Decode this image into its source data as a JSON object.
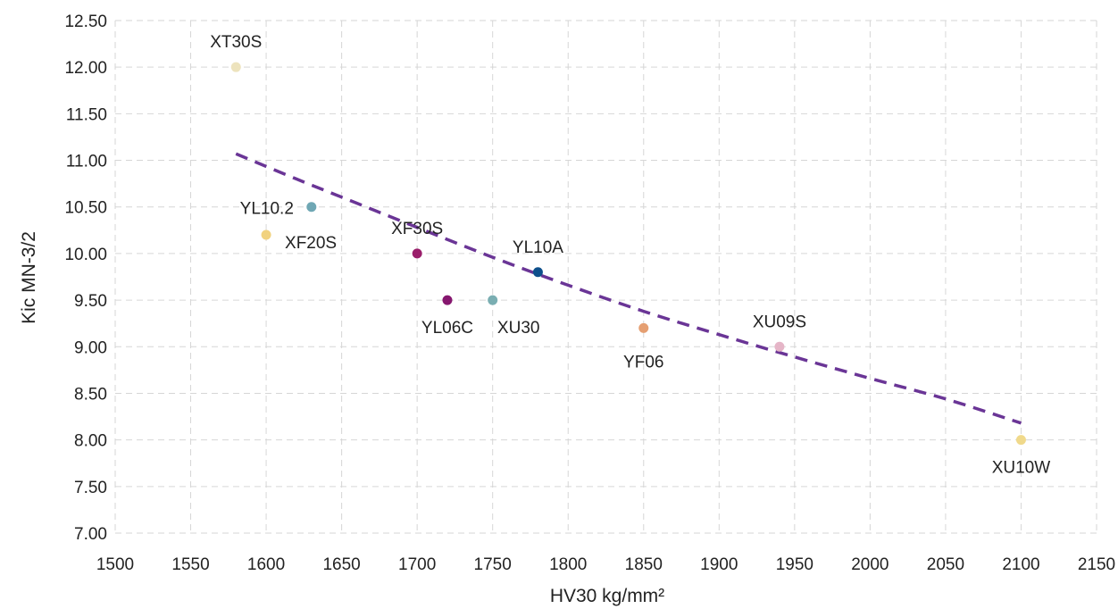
{
  "chart_data": {
    "type": "scatter",
    "title": "",
    "xlabel": "HV30 kg/mm²",
    "ylabel": "Kic MN-3/2",
    "xlim": [
      1500,
      2150
    ],
    "ylim": [
      7.0,
      12.5
    ],
    "x_ticks": [
      "1500",
      "1550",
      "1600",
      "1650",
      "1700",
      "1750",
      "1800",
      "1850",
      "1900",
      "1950",
      "2000",
      "2050",
      "2100",
      "2150"
    ],
    "y_ticks": [
      "7.00",
      "7.50",
      "8.00",
      "8.50",
      "9.00",
      "9.50",
      "10.00",
      "10.50",
      "11.00",
      "11.50",
      "12.00",
      "12.50"
    ],
    "grid": true,
    "points": [
      {
        "label": "XT30S",
        "x": 1580,
        "y": 12.0,
        "color": "#ede3bd"
      },
      {
        "label": "YL10.2",
        "x": 1630,
        "y": 10.5,
        "color": "#6fa7b4"
      },
      {
        "label": "XF20S",
        "x": 1600,
        "y": 10.2,
        "color": "#f1d27f"
      },
      {
        "label": "XF30S",
        "x": 1700,
        "y": 10.0,
        "color": "#9a1f6b"
      },
      {
        "label": "YL06C",
        "x": 1720,
        "y": 9.5,
        "color": "#86176f"
      },
      {
        "label": "XU30",
        "x": 1750,
        "y": 9.5,
        "color": "#7aaeb2"
      },
      {
        "label": "YL10A",
        "x": 1780,
        "y": 9.8,
        "color": "#0d4f8b"
      },
      {
        "label": "YF06",
        "x": 1850,
        "y": 9.2,
        "color": "#e59f72"
      },
      {
        "label": "XU09S",
        "x": 1940,
        "y": 9.0,
        "color": "#e5b5c7"
      },
      {
        "label": "XU10W",
        "x": 2100,
        "y": 8.0,
        "color": "#f0d98b"
      }
    ],
    "trendline": {
      "type": "power",
      "color": "#6a3596",
      "x": [
        1580,
        1620,
        1660,
        1700,
        1750,
        1800,
        1850,
        1900,
        1950,
        2000,
        2050,
        2100
      ],
      "y": [
        11.07,
        10.8,
        10.54,
        10.28,
        9.96,
        9.66,
        9.38,
        9.13,
        8.89,
        8.66,
        8.44,
        8.18
      ]
    }
  }
}
